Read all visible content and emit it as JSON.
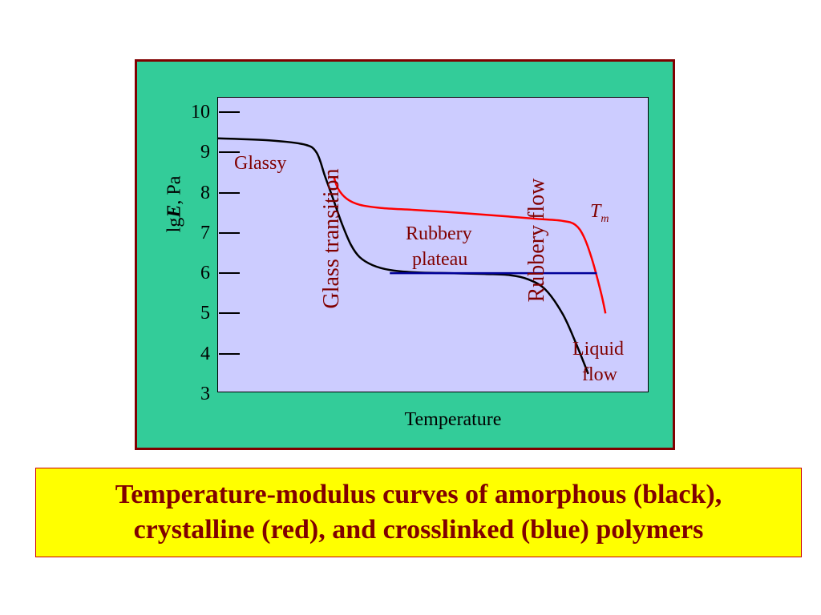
{
  "caption": {
    "line1": "Temperature-modulus curves of amorphous (black),",
    "line2": "crystalline (red), and crosslinked (blue) polymers"
  },
  "colors": {
    "frame_bg": "#33cc99",
    "frame_border": "#800000",
    "plot_bg": "#ccccff",
    "caption_bg": "#ffff00",
    "caption_text": "#800000",
    "amorphous": "#000000",
    "crystalline": "#ff0000",
    "crosslinked": "#000099"
  },
  "chart_data": {
    "type": "line",
    "title": "",
    "xlabel": "Temperature",
    "ylabel_prefix": "lg",
    "ylabel_var": "E",
    "ylabel_suffix": ", Pa",
    "ylim": [
      3,
      10
    ],
    "yticks": [
      "10",
      "9",
      "8",
      "7",
      "6",
      "5",
      "4",
      "3"
    ],
    "xlim": [
      0,
      100
    ],
    "grid": false,
    "annotations": {
      "glassy": "Glassy",
      "glass_transition": "Glass transition",
      "rubbery_plateau_1": "Rubbery",
      "rubbery_plateau_2": "plateau",
      "rubbery_flow": "Rubbery flow",
      "tm_main": "T",
      "tm_sub": "m",
      "liquid_flow_1": "Liquid",
      "liquid_flow_2": "flow"
    },
    "series": [
      {
        "key": "amorphous",
        "x": [
          0,
          12,
          20,
          23,
          25,
          27,
          29,
          31,
          33,
          36,
          40,
          46,
          54,
          62,
          68,
          72,
          76,
          80,
          83,
          86
        ],
        "y": [
          9.35,
          9.3,
          9.2,
          9.0,
          8.4,
          7.8,
          7.2,
          6.7,
          6.4,
          6.2,
          6.08,
          6.02,
          6.0,
          5.98,
          5.95,
          5.85,
          5.6,
          5.0,
          4.3,
          3.5
        ]
      },
      {
        "key": "crystalline",
        "x": [
          27,
          28,
          30,
          33,
          38,
          46,
          56,
          66,
          74,
          80,
          83,
          85,
          87,
          89,
          90
        ],
        "y": [
          8.4,
          8.1,
          7.85,
          7.7,
          7.62,
          7.57,
          7.5,
          7.42,
          7.35,
          7.3,
          7.2,
          6.9,
          6.3,
          5.5,
          5.0
        ]
      },
      {
        "key": "crosslinked",
        "x": [
          40,
          50,
          60,
          70,
          80,
          88
        ],
        "y": [
          6.0,
          6.0,
          6.0,
          6.0,
          6.0,
          6.0
        ]
      }
    ]
  }
}
